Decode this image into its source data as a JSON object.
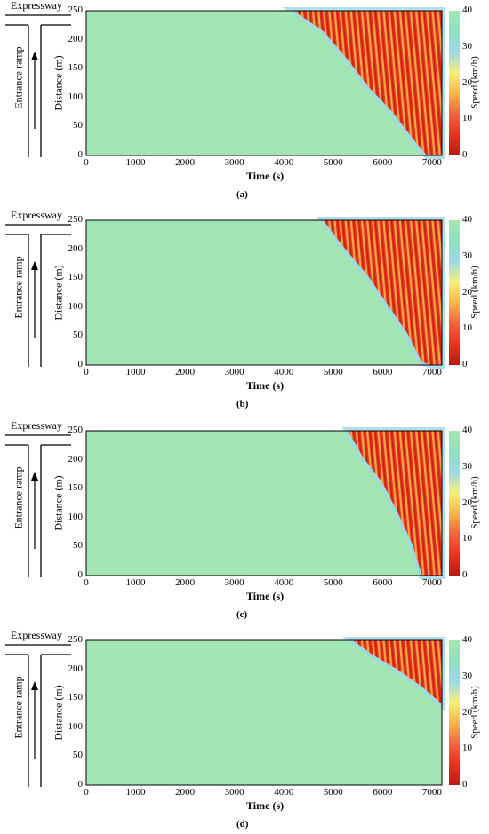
{
  "labels": {
    "expressway": "Expressway",
    "ramp": "Entrance ramp",
    "ylabel": "Distance (m)",
    "xlabel": "Time (s)",
    "colorbar_label": "Speed (km/h)"
  },
  "colors": {
    "free_flow": "#a3e6b3",
    "scale": [
      "#b31d0d",
      "#e9321e",
      "#f0653d",
      "#f9b44a",
      "#f5f07a",
      "#9fd8e8",
      "#8ddfc0",
      "#a6e8b0"
    ]
  },
  "chart_data": [
    {
      "type": "heatmap",
      "caption": "(a)",
      "x_ticks": [
        "0",
        "1000",
        "2000",
        "3000",
        "4000",
        "5000",
        "6000",
        "7000"
      ],
      "y_ticks": [
        "0",
        "50",
        "100",
        "150",
        "200",
        "250"
      ],
      "colorbar_ticks": [
        "0",
        "10",
        "20",
        "30",
        "40"
      ],
      "xlim": [
        0,
        7200
      ],
      "ylim": [
        0,
        250
      ],
      "clim": [
        0,
        40
      ],
      "congestion_front": [
        [
          4200,
          250
        ],
        [
          4800,
          215
        ],
        [
          5300,
          165
        ],
        [
          5700,
          120
        ],
        [
          6200,
          75
        ],
        [
          6700,
          20
        ],
        [
          6900,
          0
        ],
        [
          7200,
          0
        ]
      ]
    },
    {
      "type": "heatmap",
      "caption": "(b)",
      "x_ticks": [
        "0",
        "1000",
        "2000",
        "3000",
        "4000",
        "5000",
        "6000",
        "7000"
      ],
      "y_ticks": [
        "0",
        "50",
        "100",
        "150",
        "200",
        "250"
      ],
      "colorbar_ticks": [
        "0",
        "10",
        "20",
        "30",
        "40"
      ],
      "xlim": [
        0,
        7200
      ],
      "ylim": [
        0,
        250
      ],
      "clim": [
        0,
        40
      ],
      "congestion_front": [
        [
          4800,
          250
        ],
        [
          5200,
          205
        ],
        [
          5700,
          155
        ],
        [
          6100,
          105
        ],
        [
          6500,
          55
        ],
        [
          6800,
          5
        ],
        [
          7000,
          0
        ],
        [
          7200,
          0
        ]
      ]
    },
    {
      "type": "heatmap",
      "caption": "(c)",
      "x_ticks": [
        "0",
        "1000",
        "2000",
        "3000",
        "4000",
        "5000",
        "6000",
        "7000"
      ],
      "y_ticks": [
        "0",
        "50",
        "100",
        "150",
        "200",
        "250"
      ],
      "colorbar_ticks": [
        "0",
        "10",
        "20",
        "30",
        "40"
      ],
      "xlim": [
        0,
        7200
      ],
      "ylim": [
        0,
        250
      ],
      "clim": [
        0,
        40
      ],
      "congestion_front": [
        [
          5300,
          250
        ],
        [
          5600,
          205
        ],
        [
          6000,
          160
        ],
        [
          6300,
          110
        ],
        [
          6600,
          55
        ],
        [
          6800,
          0
        ],
        [
          7200,
          0
        ]
      ]
    },
    {
      "type": "heatmap",
      "caption": "(d)",
      "x_ticks": [
        "0",
        "1000",
        "2000",
        "3000",
        "4000",
        "5000",
        "6000",
        "7000"
      ],
      "y_ticks": [
        "0",
        "50",
        "100",
        "150",
        "200",
        "250"
      ],
      "colorbar_ticks": [
        "0",
        "10",
        "20",
        "30",
        "40"
      ],
      "xlim": [
        0,
        7200
      ],
      "ylim": [
        0,
        250
      ],
      "clim": [
        0,
        40
      ],
      "congestion_front": [
        [
          5400,
          250
        ],
        [
          5800,
          225
        ],
        [
          6300,
          200
        ],
        [
          6800,
          170
        ],
        [
          7200,
          140
        ]
      ]
    }
  ]
}
